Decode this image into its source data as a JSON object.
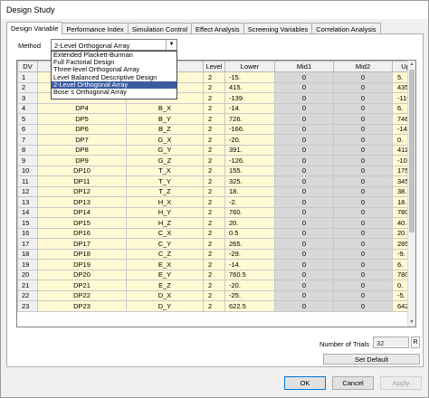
{
  "window": {
    "title": "Design Study"
  },
  "tabs": [
    {
      "label": "Design Variable",
      "active": true
    },
    {
      "label": "Performance Index",
      "active": false
    },
    {
      "label": "Simulation Control",
      "active": false
    },
    {
      "label": "Effect Analysis",
      "active": false
    },
    {
      "label": "Screening Variables",
      "active": false
    },
    {
      "label": "Correlation Analysis",
      "active": false
    }
  ],
  "method": {
    "label": "Method",
    "selected": "2-Level Orthogonal Array",
    "options": [
      "Extended Plackett-Burman",
      "Full Factorial Design",
      "Three-level Orthogonal Array",
      "Level Balanced Descriptive Design",
      "2-Level Orthogonal Array",
      "Bose`s Orthogonal Array"
    ],
    "selected_index": 4
  },
  "grid": {
    "columns": [
      "DV",
      "",
      "",
      "Level",
      "Lower",
      "Mid1",
      "Mid2",
      "Upper"
    ],
    "rows": [
      {
        "dv": "1",
        "name": "",
        "var": "",
        "level": "2",
        "lower": "-15.",
        "mid1": "0",
        "mid2": "0",
        "upper": "5."
      },
      {
        "dv": "2",
        "name": "",
        "var": "",
        "level": "2",
        "lower": "415.",
        "mid1": "0",
        "mid2": "0",
        "upper": "435."
      },
      {
        "dv": "3",
        "name": "",
        "var": "",
        "level": "2",
        "lower": "-139.",
        "mid1": "0",
        "mid2": "0",
        "upper": "-119."
      },
      {
        "dv": "4",
        "name": "DP4",
        "var": "B_X",
        "level": "2",
        "lower": "-14.",
        "mid1": "0",
        "mid2": "0",
        "upper": "6."
      },
      {
        "dv": "5",
        "name": "DP5",
        "var": "B_Y",
        "level": "2",
        "lower": "726.",
        "mid1": "0",
        "mid2": "0",
        "upper": "746."
      },
      {
        "dv": "6",
        "name": "DP6",
        "var": "B_Z",
        "level": "2",
        "lower": "-166.",
        "mid1": "0",
        "mid2": "0",
        "upper": "-146."
      },
      {
        "dv": "7",
        "name": "DP7",
        "var": "G_X",
        "level": "2",
        "lower": "-20.",
        "mid1": "0",
        "mid2": "0",
        "upper": "0."
      },
      {
        "dv": "8",
        "name": "DP8",
        "var": "G_Y",
        "level": "2",
        "lower": "391.",
        "mid1": "0",
        "mid2": "0",
        "upper": "411."
      },
      {
        "dv": "9",
        "name": "DP9",
        "var": "G_Z",
        "level": "2",
        "lower": "-126.",
        "mid1": "0",
        "mid2": "0",
        "upper": "-106."
      },
      {
        "dv": "10",
        "name": "DP10",
        "var": "T_X",
        "level": "2",
        "lower": "155.",
        "mid1": "0",
        "mid2": "0",
        "upper": "175."
      },
      {
        "dv": "11",
        "name": "DP11",
        "var": "T_Y",
        "level": "2",
        "lower": "325.",
        "mid1": "0",
        "mid2": "0",
        "upper": "345."
      },
      {
        "dv": "12",
        "name": "DP12",
        "var": "T_Z",
        "level": "2",
        "lower": "18.",
        "mid1": "0",
        "mid2": "0",
        "upper": "38."
      },
      {
        "dv": "13",
        "name": "DP13",
        "var": "H_X",
        "level": "2",
        "lower": "-2.",
        "mid1": "0",
        "mid2": "0",
        "upper": "18."
      },
      {
        "dv": "14",
        "name": "DP14",
        "var": "H_Y",
        "level": "2",
        "lower": "760.",
        "mid1": "0",
        "mid2": "0",
        "upper": "780."
      },
      {
        "dv": "15",
        "name": "DP15",
        "var": "H_Z",
        "level": "2",
        "lower": "20.",
        "mid1": "0",
        "mid2": "0",
        "upper": "40."
      },
      {
        "dv": "16",
        "name": "DP16",
        "var": "C_X",
        "level": "2",
        "lower": "0.5",
        "mid1": "0",
        "mid2": "0",
        "upper": "20.5"
      },
      {
        "dv": "17",
        "name": "DP17",
        "var": "C_Y",
        "level": "2",
        "lower": "265.",
        "mid1": "0",
        "mid2": "0",
        "upper": "285."
      },
      {
        "dv": "18",
        "name": "DP18",
        "var": "C_Z",
        "level": "2",
        "lower": "-29.",
        "mid1": "0",
        "mid2": "0",
        "upper": "-9."
      },
      {
        "dv": "19",
        "name": "DP19",
        "var": "E_X",
        "level": "2",
        "lower": "-14.",
        "mid1": "0",
        "mid2": "0",
        "upper": "6."
      },
      {
        "dv": "20",
        "name": "DP20",
        "var": "E_Y",
        "level": "2",
        "lower": "760.5",
        "mid1": "0",
        "mid2": "0",
        "upper": "780.5"
      },
      {
        "dv": "21",
        "name": "DP21",
        "var": "E_Z",
        "level": "2",
        "lower": "-20.",
        "mid1": "0",
        "mid2": "0",
        "upper": "0."
      },
      {
        "dv": "22",
        "name": "DP22",
        "var": "D_X",
        "level": "2",
        "lower": "-25.",
        "mid1": "0",
        "mid2": "0",
        "upper": "-5."
      },
      {
        "dv": "23",
        "name": "DP23",
        "var": "D_Y",
        "level": "2",
        "lower": "622.5",
        "mid1": "0",
        "mid2": "0",
        "upper": "642.5"
      }
    ]
  },
  "trials": {
    "label": "Number of Trials",
    "value": "32",
    "button": "R"
  },
  "set_default_label": "Set Default",
  "buttons": {
    "ok": "OK",
    "cancel": "Cancel",
    "apply": "Apply"
  }
}
